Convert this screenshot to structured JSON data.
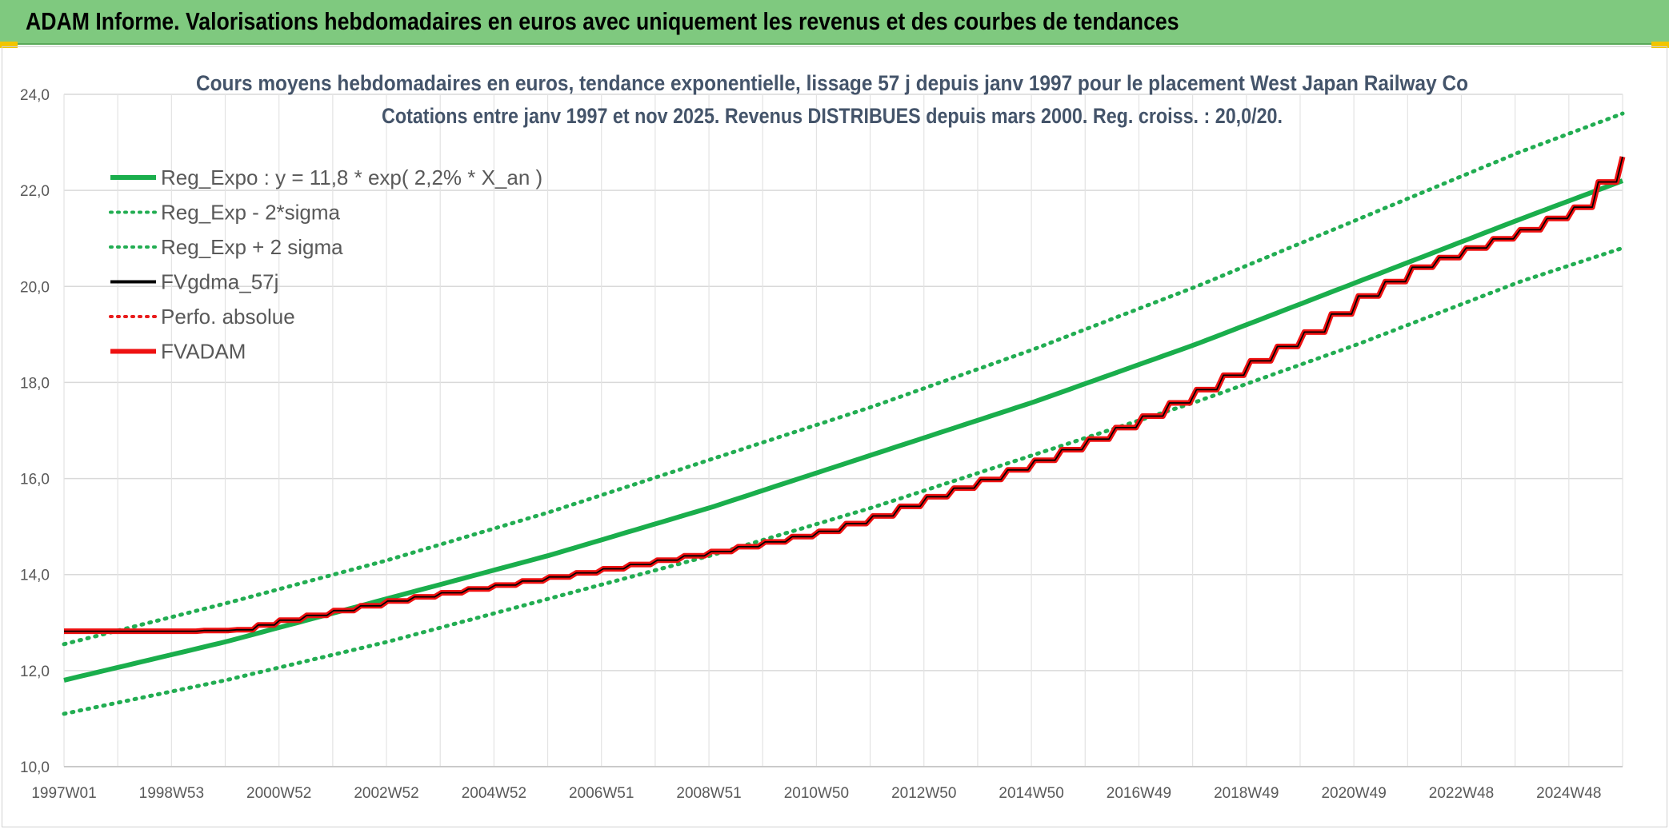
{
  "header": {
    "banner_title": "ADAM Informe. Valorisations hebdomadaires en euros avec uniquement les revenus et des courbes de tendances"
  },
  "colors": {
    "banner": "#7fc97f",
    "reg_expo": "#1aae4c",
    "sigma_bands": "#22ad52",
    "fvgdma": "#000000",
    "perfo": "#e81b1b",
    "fvadam": "#ee1111"
  },
  "chart_data": {
    "type": "line",
    "title_line1": "Cours moyens hebdomadaires en euros, tendance exponentielle, lissage 57 j depuis janv 1997 pour le placement West Japan Railway Co",
    "title_line2": "Cotations entre janv 1997 et nov 2025. Revenus DISTRIBUES depuis mars 2000. Reg. croiss. : 20,0/20.",
    "xlabel": "",
    "ylabel": "",
    "x_range_years": [
      1997.0,
      2025.9
    ],
    "ylim": [
      10.0,
      24.0
    ],
    "y_ticks": [
      "10,0",
      "12,0",
      "14,0",
      "16,0",
      "18,0",
      "20,0",
      "22,0",
      "24,0"
    ],
    "x_tick_labels": [
      "1997W01",
      "1998W53",
      "2000W52",
      "2002W52",
      "2004W52",
      "2006W51",
      "2008W51",
      "2010W50",
      "2012W50",
      "2014W50",
      "2016W49",
      "2018W49",
      "2020W49",
      "2022W48",
      "2024W48"
    ],
    "legend": [
      {
        "label": "Reg_Expo : y = 11,8 * exp( 2,2% *  X_an )",
        "style": "solid-thick",
        "color": "#1aae4c"
      },
      {
        "label": "Reg_Exp - 2*sigma",
        "style": "dotted",
        "color": "#22ad52"
      },
      {
        "label": "Reg_Exp + 2 sigma",
        "style": "dotted",
        "color": "#22ad52"
      },
      {
        "label": "FVgdma_57j",
        "style": "solid",
        "color": "#000000"
      },
      {
        "label": "Perfo. absolue",
        "style": "dotted",
        "color": "#e81b1b"
      },
      {
        "label": "FVADAM",
        "style": "solid-thick",
        "color": "#ee1111"
      }
    ],
    "series": [
      {
        "name": "Reg_Expo",
        "x": [
          1997.0,
          2000.0,
          2003.0,
          2006.0,
          2009.0,
          2012.0,
          2015.0,
          2018.0,
          2021.0,
          2024.0,
          2025.9
        ],
        "values": [
          11.8,
          12.6,
          13.5,
          14.4,
          15.4,
          16.5,
          17.6,
          18.8,
          20.1,
          21.4,
          22.2
        ]
      },
      {
        "name": "Reg_Exp - 2*sigma",
        "x": [
          1997.0,
          2000.0,
          2003.0,
          2006.0,
          2009.0,
          2012.0,
          2015.0,
          2018.0,
          2021.0,
          2024.0,
          2025.9
        ],
        "values": [
          11.1,
          11.8,
          12.6,
          13.5,
          14.4,
          15.4,
          16.5,
          17.6,
          18.8,
          20.1,
          20.8
        ]
      },
      {
        "name": "Reg_Exp + 2 sigma",
        "x": [
          1997.0,
          2000.0,
          2003.0,
          2006.0,
          2009.0,
          2012.0,
          2015.0,
          2018.0,
          2021.0,
          2024.0,
          2025.9
        ],
        "values": [
          12.55,
          13.4,
          14.3,
          15.3,
          16.4,
          17.5,
          18.7,
          20.0,
          21.4,
          22.8,
          23.6
        ]
      },
      {
        "name": "FVADAM",
        "x": [
          1997.0,
          1998.0,
          1999.0,
          2000.2,
          2001.0,
          2002.0,
          2003.0,
          2004.0,
          2005.0,
          2006.0,
          2007.0,
          2008.0,
          2009.0,
          2010.0,
          2011.0,
          2012.0,
          2013.0,
          2014.0,
          2015.0,
          2016.0,
          2017.0,
          2018.0,
          2019.0,
          2020.0,
          2021.0,
          2022.0,
          2023.0,
          2024.0,
          2025.0,
          2025.9
        ],
        "values": [
          12.82,
          12.82,
          12.82,
          12.85,
          13.05,
          13.25,
          13.45,
          13.62,
          13.78,
          13.95,
          14.12,
          14.3,
          14.48,
          14.68,
          14.9,
          15.22,
          15.62,
          15.98,
          16.38,
          16.82,
          17.3,
          17.85,
          18.45,
          19.05,
          19.8,
          20.4,
          20.8,
          21.18,
          21.65,
          22.7
        ]
      },
      {
        "name": "FVgdma_57j",
        "x": [
          1997.0,
          1998.0,
          1999.0,
          2000.2,
          2001.0,
          2002.0,
          2003.0,
          2004.0,
          2005.0,
          2006.0,
          2007.0,
          2008.0,
          2009.0,
          2010.0,
          2011.0,
          2012.0,
          2013.0,
          2014.0,
          2015.0,
          2016.0,
          2017.0,
          2018.0,
          2019.0,
          2020.0,
          2021.0,
          2022.0,
          2023.0,
          2024.0,
          2025.0,
          2025.9
        ],
        "values": [
          12.82,
          12.82,
          12.82,
          12.85,
          13.05,
          13.25,
          13.45,
          13.62,
          13.78,
          13.95,
          14.12,
          14.3,
          14.48,
          14.68,
          14.9,
          15.22,
          15.62,
          15.98,
          16.38,
          16.82,
          17.3,
          17.85,
          18.45,
          19.05,
          19.8,
          20.4,
          20.8,
          21.18,
          21.65,
          22.7
        ]
      }
    ]
  }
}
